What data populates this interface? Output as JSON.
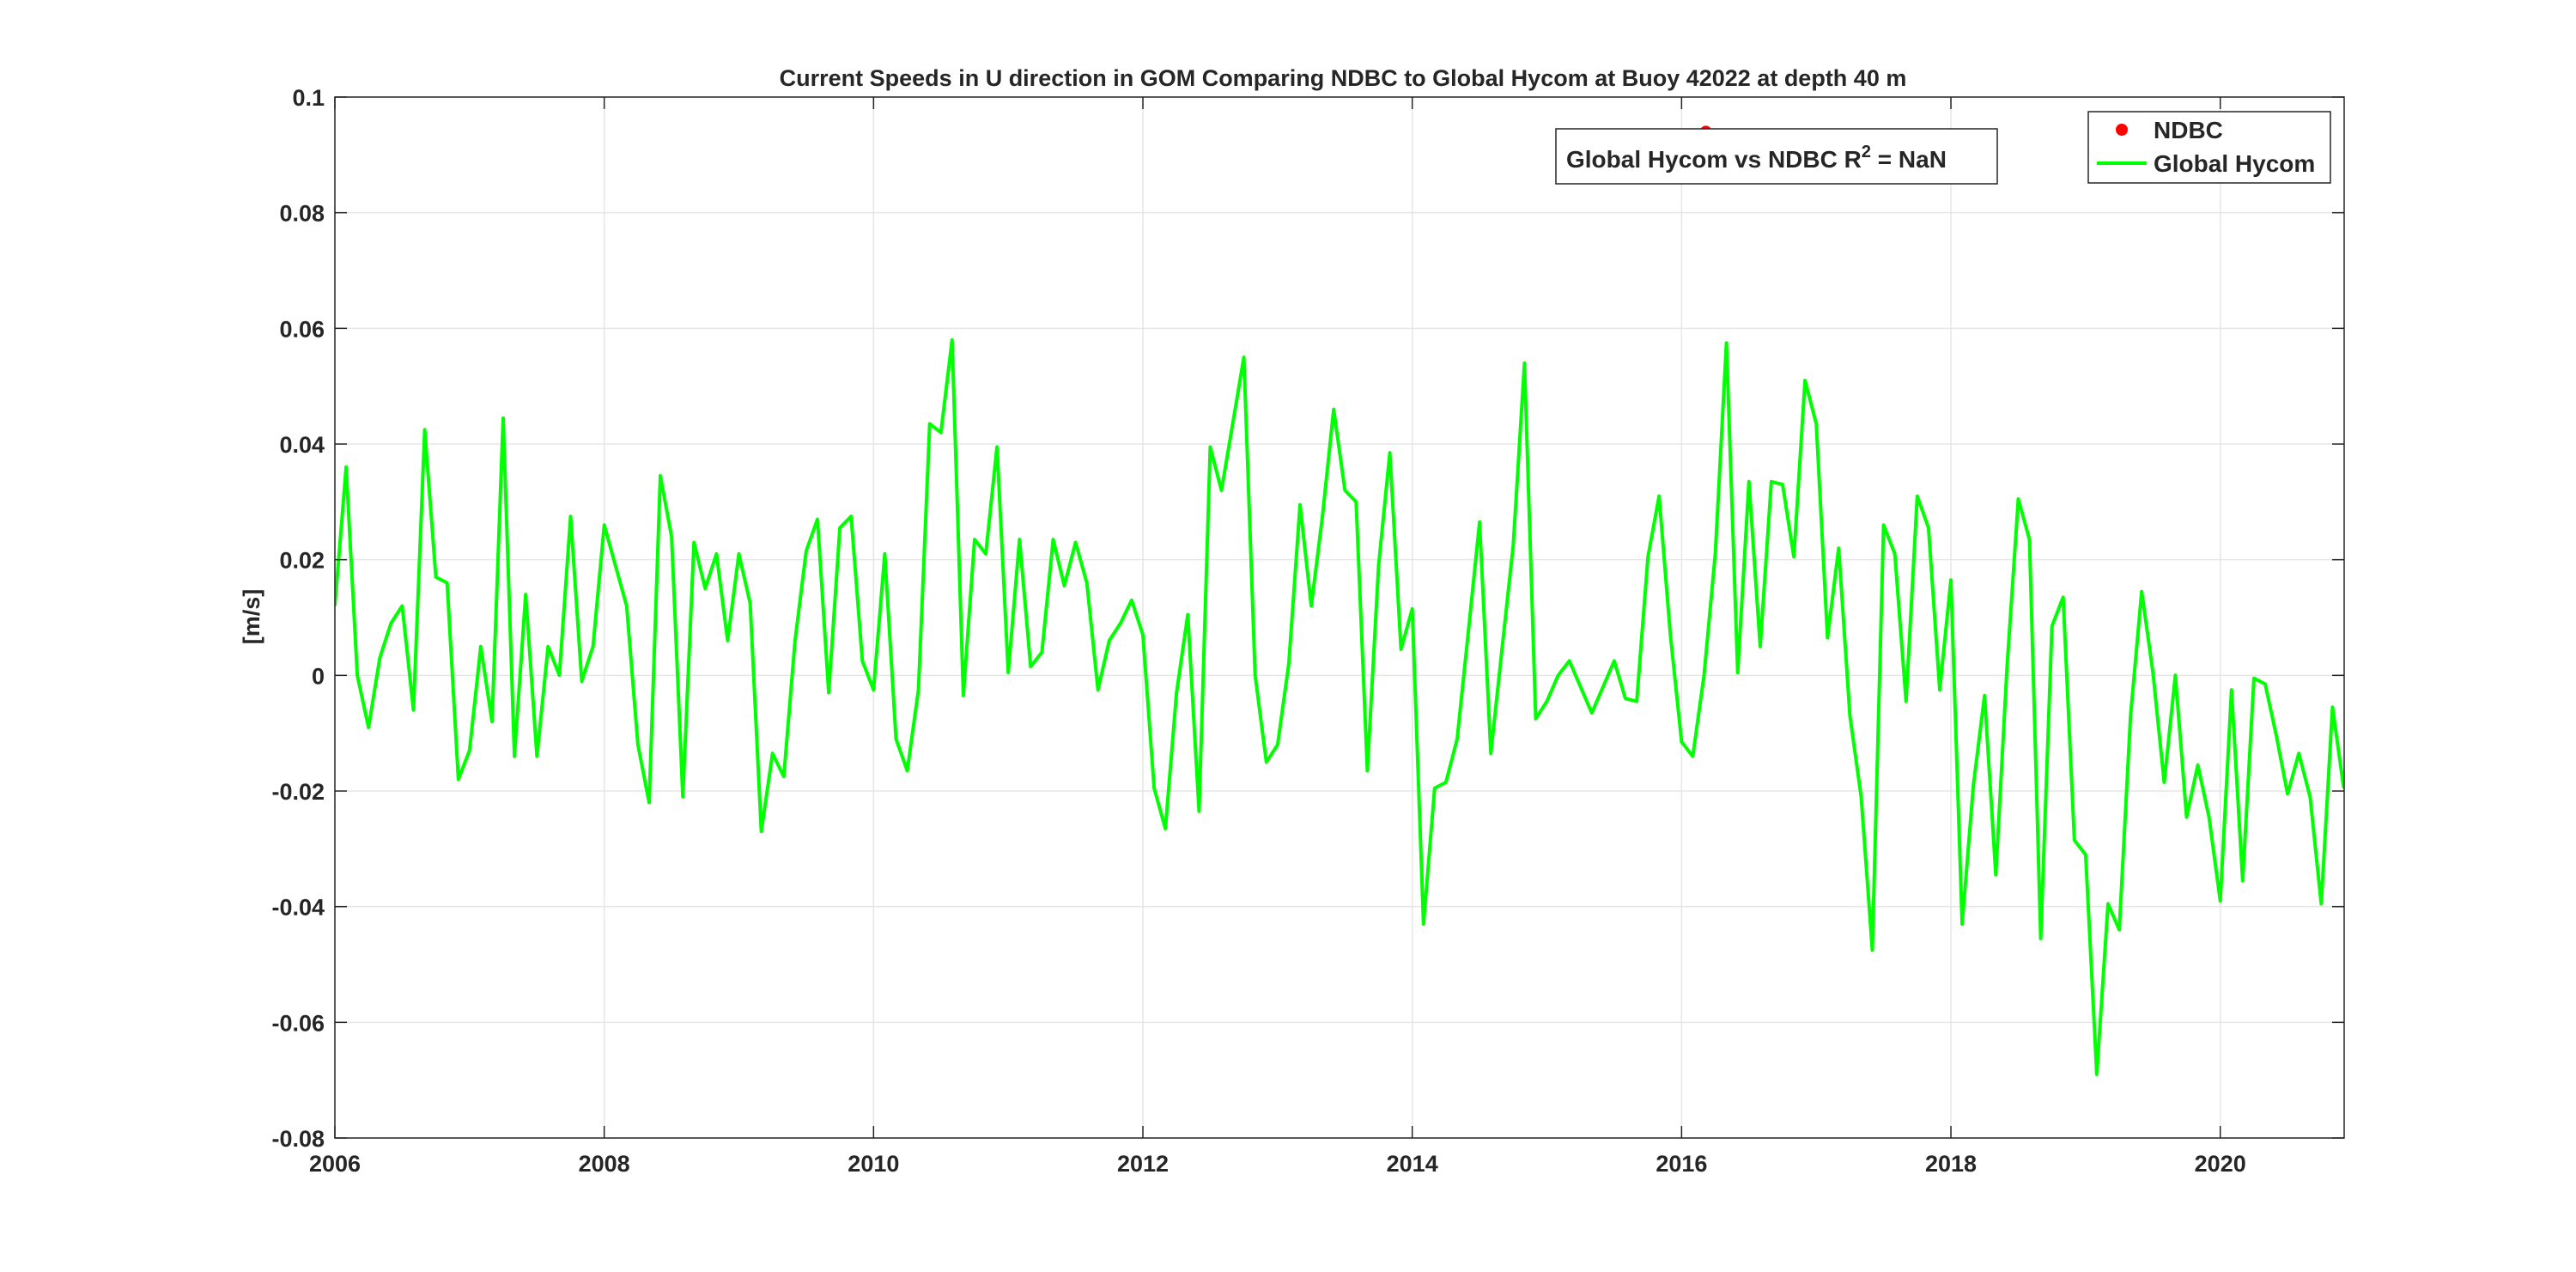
{
  "chart_data": {
    "type": "line",
    "title": "Current Speeds in U direction in GOM Comparing NDBC to Global Hycom at Buoy  42022  at depth  40 m",
    "xlabel": "",
    "ylabel": "[m/s]",
    "xlim": [
      2006,
      2020.92
    ],
    "ylim": [
      -0.08,
      0.1
    ],
    "x_ticks": [
      2006,
      2008,
      2010,
      2012,
      2014,
      2016,
      2018,
      2020
    ],
    "x_tick_labels": [
      "2006",
      "2008",
      "2010",
      "2012",
      "2014",
      "2016",
      "2018",
      "2020"
    ],
    "y_ticks": [
      -0.08,
      -0.06,
      -0.04,
      -0.02,
      0,
      0.02,
      0.04,
      0.06,
      0.08,
      0.1
    ],
    "y_tick_labels": [
      "-0.08",
      "-0.06",
      "-0.04",
      "-0.02",
      "0",
      "0.02",
      "0.04",
      "0.06",
      "0.08",
      "0.1"
    ],
    "grid": true,
    "legend_position": "top-right",
    "annotation": {
      "prefix": "Global Hycom vs NDBC R",
      "superscript": "2",
      "suffix": " = NaN"
    },
    "series": [
      {
        "name": "NDBC",
        "kind": "scatter",
        "color": "#ff0000",
        "x": [
          2016.18
        ],
        "y": [
          0.094
        ]
      },
      {
        "name": "Global Hycom",
        "kind": "line",
        "color": "#00ff00",
        "start_year": 2006,
        "step": 0.0833333,
        "y": [
          0.012,
          0.036,
          0.0,
          -0.009,
          0.003,
          0.009,
          0.012,
          -0.006,
          0.0425,
          0.017,
          0.016,
          -0.018,
          -0.013,
          0.005,
          -0.008,
          0.0445,
          -0.014,
          0.014,
          -0.014,
          0.005,
          0.0,
          0.0275,
          -0.001,
          0.005,
          0.026,
          0.019,
          0.012,
          -0.012,
          -0.022,
          0.0345,
          0.024,
          -0.021,
          0.023,
          0.015,
          0.021,
          0.006,
          0.021,
          0.0125,
          -0.027,
          -0.0135,
          -0.0175,
          0.006,
          0.0215,
          0.027,
          -0.003,
          0.0255,
          0.0275,
          0.0025,
          -0.0025,
          0.021,
          -0.011,
          -0.0165,
          -0.0025,
          0.0435,
          0.042,
          0.058,
          -0.0035,
          0.0235,
          0.021,
          0.0395,
          0.0005,
          0.0235,
          0.0015,
          0.004,
          0.0235,
          0.0155,
          0.023,
          0.016,
          -0.0025,
          0.006,
          0.009,
          0.013,
          0.007,
          -0.0195,
          -0.0265,
          -0.003,
          0.0105,
          -0.0235,
          0.0395,
          0.032,
          0.0435,
          0.055,
          0.0,
          -0.015,
          -0.012,
          0.002,
          0.0295,
          0.012,
          0.0275,
          0.046,
          0.032,
          0.03,
          -0.0165,
          0.019,
          0.0385,
          0.0045,
          0.0115,
          -0.043,
          -0.0195,
          -0.0185,
          -0.011,
          0.0075,
          0.0265,
          -0.0135,
          0.0045,
          0.0225,
          0.054,
          -0.0075,
          -0.0045,
          0.0,
          0.0025,
          -0.002,
          -0.0065,
          -0.002,
          0.0025,
          -0.004,
          -0.0045,
          0.0205,
          0.031,
          0.007,
          -0.0115,
          -0.014,
          0.0,
          0.021,
          0.0575,
          0.0005,
          0.0335,
          0.005,
          0.0335,
          0.033,
          0.0205,
          0.051,
          0.0435,
          0.0065,
          0.022,
          -0.007,
          -0.021,
          -0.0475,
          0.026,
          0.021,
          -0.0045,
          0.031,
          0.0255,
          -0.0025,
          0.0165,
          -0.043,
          -0.019,
          -0.0035,
          -0.0345,
          0.0015,
          0.0305,
          0.0235,
          -0.0455,
          0.0085,
          0.0135,
          -0.0285,
          -0.031,
          -0.069,
          -0.0395,
          -0.044,
          -0.007,
          0.0145,
          0.0005,
          -0.0185,
          0.0,
          -0.0245,
          -0.0155,
          -0.0245,
          -0.039,
          -0.0025,
          -0.0355,
          -0.0005,
          -0.0015,
          -0.0105,
          -0.0205,
          -0.0135,
          -0.021,
          -0.0395,
          -0.0055,
          -0.0195
        ]
      }
    ]
  }
}
